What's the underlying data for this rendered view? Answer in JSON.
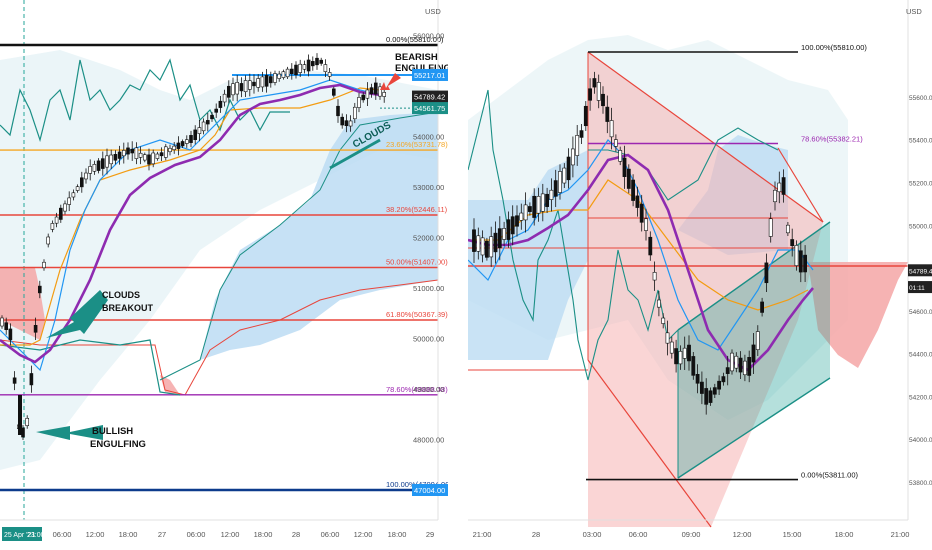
{
  "left": {
    "currency": "USD",
    "price_labels": [
      {
        "v": 56000,
        "text": "56000.00",
        "kind": "axis"
      },
      {
        "v": 55217.01,
        "text": "55217.01",
        "kind": "blue"
      },
      {
        "v": 54789.42,
        "text": "54789.42",
        "kind": "dark"
      },
      {
        "v": 54611,
        "text": "46:11",
        "kind": "dark"
      },
      {
        "v": 54561.75,
        "text": "54561.75",
        "kind": "teal"
      },
      {
        "v": 54000,
        "text": "54000.00",
        "kind": "axis"
      },
      {
        "v": 53000,
        "text": "53000.00",
        "kind": "axis"
      },
      {
        "v": 52000,
        "text": "52000.00",
        "kind": "axis"
      },
      {
        "v": 51000,
        "text": "51000.00",
        "kind": "axis"
      },
      {
        "v": 50000,
        "text": "50000.00",
        "kind": "axis"
      },
      {
        "v": 49000,
        "text": "49000.00",
        "kind": "axis"
      },
      {
        "v": 48000,
        "text": "48000.00",
        "kind": "axis"
      },
      {
        "v": 47004,
        "text": "47004.00",
        "kind": "blue"
      }
    ],
    "fib_levels": [
      {
        "ratio": "0.00%(55810.00)",
        "v": 55810,
        "color": "#111111"
      },
      {
        "ratio": "23.60%(53731.78)",
        "v": 53731.78,
        "color": "#f5a623"
      },
      {
        "ratio": "38.20%(52446.11)",
        "v": 52446.11,
        "color": "#e8463c"
      },
      {
        "ratio": "50.00%(51407.00)",
        "v": 51407,
        "color": "#e8463c"
      },
      {
        "ratio": "61.80%(50367.89)",
        "v": 50367.89,
        "color": "#e8463c"
      },
      {
        "ratio": "78.60%(48888.48)",
        "v": 48888.48,
        "color": "#9c27b0"
      },
      {
        "ratio": "100.00%(47004.00)",
        "v": 47004,
        "color": "#0d3b8c"
      }
    ],
    "x_labels": [
      "06:00",
      "12:00",
      "18:00",
      "27",
      "06:00",
      "12:00",
      "18:00",
      "28",
      "06:00",
      "12:00",
      "18:00",
      "29"
    ],
    "date_badge": "25 Apr '21",
    "time_badge": "23:00",
    "annotations": {
      "bearish": [
        "BEARISH",
        "ENGULFING"
      ],
      "clouds_breakout": [
        "CLOUDS",
        "BREAKOUT"
      ],
      "bullish": [
        "BULLISH",
        "ENGULFING"
      ],
      "clouds": "CLOUDS"
    }
  },
  "right": {
    "currency": "USD",
    "price_labels": [
      {
        "v": 55600,
        "text": "55600.00"
      },
      {
        "v": 55400,
        "text": "55400.00"
      },
      {
        "v": 55200,
        "text": "55200.00"
      },
      {
        "v": 55000,
        "text": "55000.00"
      },
      {
        "v": 54789.42,
        "text": "54789.42",
        "kind": "dark"
      },
      {
        "v": 54711,
        "text": "01:11",
        "kind": "dark"
      },
      {
        "v": 54600,
        "text": "54600.00"
      },
      {
        "v": 54400,
        "text": "54400.00"
      },
      {
        "v": 54200,
        "text": "54200.00"
      },
      {
        "v": 54000,
        "text": "54000.00"
      },
      {
        "v": 53800,
        "text": "53800.00"
      }
    ],
    "fib_levels": [
      {
        "ratio": "100.00%(55810.00)",
        "v": 55810,
        "color": "#111111"
      },
      {
        "ratio": "78.60%(55382.21)",
        "v": 55382.21,
        "color": "#9c27b0"
      },
      {
        "ratio": "0.00%(53811.00)",
        "v": 53811,
        "color": "#111111"
      }
    ],
    "x_labels": [
      "21:00",
      "28",
      "03:00",
      "06:00",
      "09:00",
      "12:00",
      "15:00",
      "18:00",
      "21:00"
    ]
  },
  "colors": {
    "up": "#ffffff",
    "down": "#111111",
    "cloud_blue": "#bcdcf3",
    "cloud_red": "#f4a6a6",
    "ema_purple": "#8e2bb0",
    "tenkan": "#2196f3",
    "kijun": "#f39c12",
    "lagging": "#1b8f86"
  }
}
